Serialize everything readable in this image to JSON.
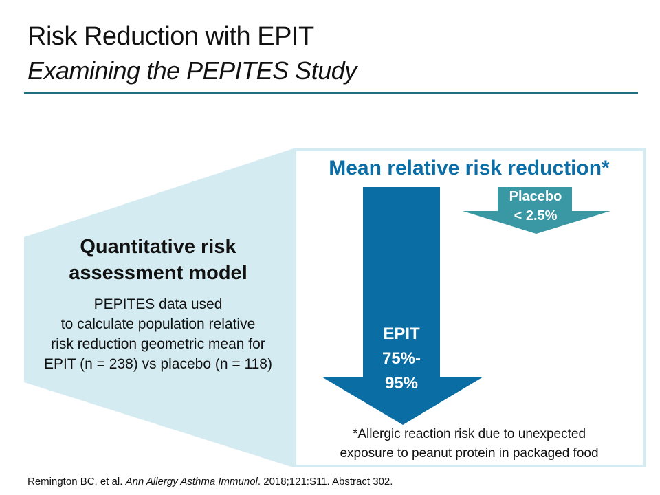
{
  "title": "Risk Reduction with EPIT",
  "subtitle": "Examining the PEPITES Study",
  "model": {
    "heading_line1": "Quantitative risk",
    "heading_line2": "assessment model",
    "body_line1": "PEPITES data used",
    "body_line2": "to calculate population relative",
    "body_line3": "risk reduction geometric mean for",
    "body_line4": "EPIT (n = 238) vs placebo (n = 118)"
  },
  "panel": {
    "heading": "Mean relative risk reduction*",
    "placebo_label": "Placebo",
    "placebo_value": "< 2.5%",
    "epit_label": "EPIT",
    "epit_value_line1": "75%-",
    "epit_value_line2": "95%",
    "footnote_line1": "*Allergic reaction risk due to unexpected",
    "footnote_line2": "exposure to peanut protein in packaged food"
  },
  "reference": {
    "authors": "Remington BC, et al. ",
    "journal": "Ann Allergy Asthma Immunol",
    "details": ". 2018;121:S11. Abstract 302."
  },
  "colors": {
    "light_blue": "#d4ebf1",
    "epit_arrow": "#0a6da4",
    "placebo_arrow": "#3a97a4",
    "heading_blue": "#0b6ea6",
    "rule": "#1f6f80"
  }
}
